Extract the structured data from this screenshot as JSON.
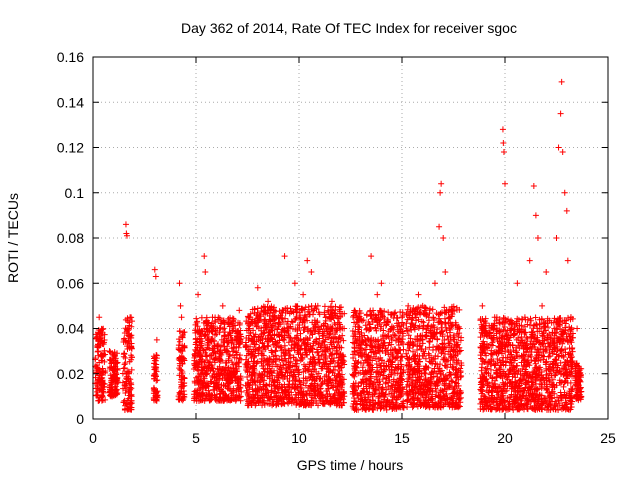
{
  "chart_data": {
    "type": "scatter",
    "title": "Day 362 of 2014, Rate Of TEC Index for receiver sgoc",
    "xlabel": "GPS time / hours",
    "ylabel": "ROTI / TECUs",
    "xlim": [
      0,
      25
    ],
    "ylim": [
      0,
      0.16
    ],
    "xticks": [
      0,
      5,
      10,
      15,
      20,
      25
    ],
    "xtick_labels": [
      "0",
      "5",
      "10",
      "15",
      "20",
      "25"
    ],
    "yticks": [
      0,
      0.02,
      0.04,
      0.06,
      0.08,
      0.1,
      0.12,
      0.14,
      0.16
    ],
    "ytick_labels": [
      "0",
      "0.02",
      "0.04",
      "0.06",
      "0.08",
      "0.1",
      "0.12",
      "0.14",
      "0.16"
    ],
    "grid": true,
    "marker": "+",
    "marker_color": "#ff0000",
    "series": [
      {
        "name": "ROTI",
        "points": [
          [
            0.2,
            0.012
          ],
          [
            0.25,
            0.03
          ],
          [
            0.3,
            0.045
          ],
          [
            0.35,
            0.02
          ],
          [
            0.4,
            0.038
          ],
          [
            0.45,
            0.01
          ],
          [
            0.3,
            0.025
          ],
          [
            0.8,
            0.03
          ],
          [
            0.9,
            0.018
          ],
          [
            1.0,
            0.025
          ],
          [
            1.1,
            0.012
          ],
          [
            1.5,
            0.035
          ],
          [
            1.55,
            0.004
          ],
          [
            1.6,
            0.086
          ],
          [
            1.62,
            0.082
          ],
          [
            1.65,
            0.081
          ],
          [
            1.7,
            0.04
          ],
          [
            1.75,
            0.02
          ],
          [
            1.8,
            0.045
          ],
          [
            1.85,
            0.008
          ],
          [
            3.0,
            0.066
          ],
          [
            3.05,
            0.063
          ],
          [
            3.1,
            0.035
          ],
          [
            3.0,
            0.02
          ],
          [
            3.05,
            0.01
          ],
          [
            3.1,
            0.028
          ],
          [
            4.2,
            0.06
          ],
          [
            4.25,
            0.05
          ],
          [
            4.3,
            0.045
          ],
          [
            4.35,
            0.03
          ],
          [
            4.4,
            0.01
          ],
          [
            4.3,
            0.02
          ],
          [
            5.0,
            0.03
          ],
          [
            5.1,
            0.055
          ],
          [
            5.2,
            0.02
          ],
          [
            5.4,
            0.072
          ],
          [
            5.45,
            0.065
          ],
          [
            5.5,
            0.04
          ],
          [
            5.6,
            0.025
          ],
          [
            5.8,
            0.045
          ],
          [
            6.0,
            0.015
          ],
          [
            6.3,
            0.05
          ],
          [
            6.6,
            0.02
          ],
          [
            6.9,
            0.035
          ],
          [
            7.1,
            0.048
          ],
          [
            7.6,
            0.04
          ],
          [
            7.8,
            0.02
          ],
          [
            8.0,
            0.058
          ],
          [
            8.2,
            0.03
          ],
          [
            8.5,
            0.052
          ],
          [
            8.8,
            0.015
          ],
          [
            9.0,
            0.045
          ],
          [
            9.3,
            0.072
          ],
          [
            9.5,
            0.03
          ],
          [
            9.8,
            0.06
          ],
          [
            10.2,
            0.055
          ],
          [
            10.4,
            0.07
          ],
          [
            10.6,
            0.065
          ],
          [
            10.8,
            0.05
          ],
          [
            11.0,
            0.025
          ],
          [
            11.3,
            0.045
          ],
          [
            11.6,
            0.052
          ],
          [
            11.9,
            0.02
          ],
          [
            12.1,
            0.04
          ],
          [
            12.7,
            0.03
          ],
          [
            12.9,
            0.045
          ],
          [
            13.2,
            0.02
          ],
          [
            13.5,
            0.072
          ],
          [
            13.8,
            0.055
          ],
          [
            14.0,
            0.06
          ],
          [
            14.2,
            0.03
          ],
          [
            14.5,
            0.04
          ],
          [
            14.8,
            0.015
          ],
          [
            15.0,
            0.045
          ],
          [
            15.3,
            0.05
          ],
          [
            15.5,
            0.02
          ],
          [
            15.8,
            0.055
          ],
          [
            16.0,
            0.035
          ],
          [
            16.3,
            0.045
          ],
          [
            16.6,
            0.06
          ],
          [
            16.8,
            0.085
          ],
          [
            16.85,
            0.1
          ],
          [
            16.9,
            0.104
          ],
          [
            17.0,
            0.08
          ],
          [
            17.1,
            0.065
          ],
          [
            17.3,
            0.045
          ],
          [
            17.5,
            0.03
          ],
          [
            17.8,
            0.04
          ],
          [
            18.9,
            0.05
          ],
          [
            19.2,
            0.02
          ],
          [
            19.5,
            0.045
          ],
          [
            19.9,
            0.128
          ],
          [
            19.92,
            0.122
          ],
          [
            19.95,
            0.118
          ],
          [
            20.0,
            0.104
          ],
          [
            20.3,
            0.04
          ],
          [
            20.6,
            0.06
          ],
          [
            20.8,
            0.025
          ],
          [
            21.2,
            0.07
          ],
          [
            21.4,
            0.103
          ],
          [
            21.5,
            0.09
          ],
          [
            21.6,
            0.08
          ],
          [
            21.8,
            0.05
          ],
          [
            22.0,
            0.065
          ],
          [
            22.3,
            0.03
          ],
          [
            22.5,
            0.08
          ],
          [
            22.6,
            0.12
          ],
          [
            22.7,
            0.135
          ],
          [
            22.75,
            0.149
          ],
          [
            22.8,
            0.118
          ],
          [
            22.9,
            0.1
          ],
          [
            23.0,
            0.092
          ],
          [
            23.05,
            0.07
          ],
          [
            23.2,
            0.045
          ],
          [
            23.5,
            0.04
          ],
          [
            23.6,
            0.02
          ],
          [
            23.7,
            0.01
          ]
        ]
      }
    ],
    "bands": [
      {
        "x_start": 0.1,
        "x_end": 0.6,
        "y_low": 0.008,
        "y_high": 0.04
      },
      {
        "x_start": 0.8,
        "x_end": 1.2,
        "y_low": 0.01,
        "y_high": 0.03
      },
      {
        "x_start": 1.45,
        "x_end": 1.9,
        "y_low": 0.004,
        "y_high": 0.045
      },
      {
        "x_start": 2.95,
        "x_end": 3.15,
        "y_low": 0.008,
        "y_high": 0.03
      },
      {
        "x_start": 4.15,
        "x_end": 4.45,
        "y_low": 0.008,
        "y_high": 0.04
      },
      {
        "x_start": 4.9,
        "x_end": 7.2,
        "y_low": 0.008,
        "y_high": 0.045
      },
      {
        "x_start": 7.4,
        "x_end": 12.2,
        "y_low": 0.006,
        "y_high": 0.05
      },
      {
        "x_start": 12.6,
        "x_end": 15.1,
        "y_low": 0.004,
        "y_high": 0.048
      },
      {
        "x_start": 15.2,
        "x_end": 17.9,
        "y_low": 0.005,
        "y_high": 0.05
      },
      {
        "x_start": 18.8,
        "x_end": 23.3,
        "y_low": 0.004,
        "y_high": 0.045
      },
      {
        "x_start": 23.4,
        "x_end": 23.7,
        "y_low": 0.008,
        "y_high": 0.025
      }
    ]
  }
}
